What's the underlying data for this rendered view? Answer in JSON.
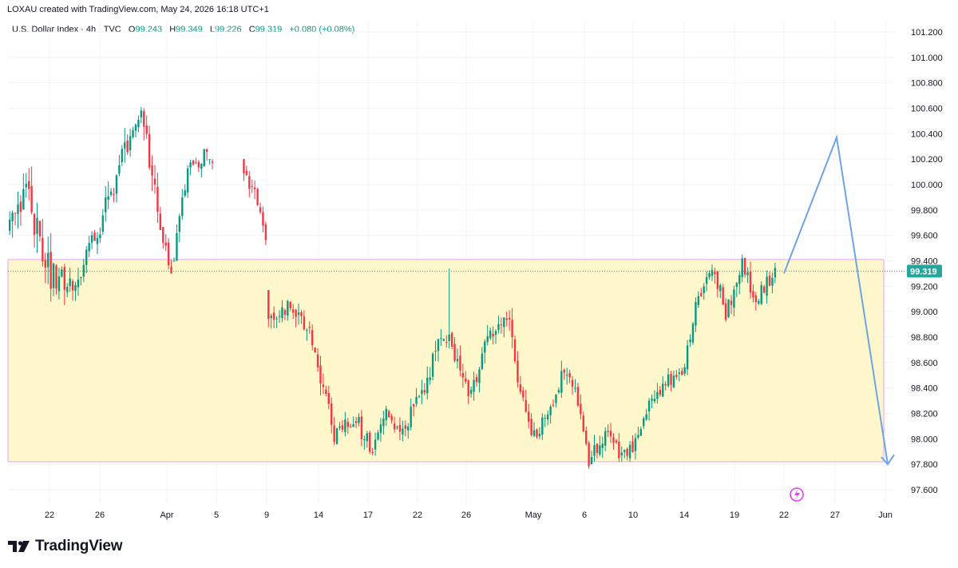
{
  "header": {
    "credit": "LOXAU created with TradingView.com, May 24, 2026 16:18 UTC+1",
    "symbol": "U.S. Dollar Index · 4h · TVC",
    "open_label": "O",
    "open": "99.243",
    "high_label": "H",
    "high": "99.349",
    "low_label": "L",
    "low": "99.226",
    "close_label": "C",
    "close": "99.319",
    "change": "+0.080 (+0.08%)"
  },
  "brand": {
    "text": "TradingView",
    "logo": "tradingview-logo-icon"
  },
  "colors": {
    "up": "#089981",
    "down": "#f23645",
    "zone_fill": "#fff7cc",
    "zone_border": "#e1a6e8",
    "projection": "#6fa3e6",
    "price_line": "#26a69a",
    "grid": "#f0f3fa"
  },
  "chart_data": {
    "type": "candlestick",
    "title": "U.S. Dollar Index · 4h · TVC",
    "ylim": [
      97.5,
      101.3
    ],
    "y_ticks": [
      97.6,
      97.8,
      98.0,
      98.2,
      98.4,
      98.6,
      98.8,
      99.0,
      99.2,
      99.4,
      99.6,
      99.8,
      100.0,
      100.2,
      100.4,
      100.6,
      100.8,
      101.0,
      101.2
    ],
    "y_tick_labels": [
      "97.600",
      "97.800",
      "98.000",
      "98.200",
      "98.400",
      "98.600",
      "98.800",
      "99.000",
      "99.200",
      "99.400",
      "99.600",
      "99.800",
      "100.000",
      "100.200",
      "100.400",
      "100.600",
      "100.800",
      "101.000",
      "101.200"
    ],
    "x_ticks": [
      "22",
      "26",
      "Apr",
      "5",
      "9",
      "14",
      "17",
      "22",
      "26",
      "May",
      "6",
      "10",
      "14",
      "19",
      "22",
      "27",
      "Jun"
    ],
    "last_price": 99.319,
    "last_price_label": "99.319",
    "zone": {
      "low": 97.82,
      "high": 99.41
    },
    "projection": [
      99.3,
      100.37,
      97.8
    ],
    "segments": [
      {
        "from": 99.6,
        "to": 99.95,
        "n": 7,
        "s": 1,
        "amp": 0.22,
        "lo": 98.95,
        "hi": 100.3
      },
      {
        "from": 99.95,
        "to": 99.3,
        "n": 9,
        "s": 2,
        "amp": 0.26,
        "lo": 98.95,
        "hi": 100.3
      },
      {
        "from": 99.3,
        "to": 99.25,
        "n": 10,
        "s": 3,
        "amp": 0.22,
        "lo": 98.9,
        "hi": 99.7
      },
      {
        "from": 99.25,
        "to": 99.75,
        "n": 9,
        "s": 4,
        "amp": 0.18,
        "lo": 99.05,
        "hi": 99.9
      },
      {
        "from": 99.75,
        "to": 100.25,
        "n": 8,
        "s": 5,
        "amp": 0.2,
        "lo": 99.6,
        "hi": 100.45
      },
      {
        "from": 100.25,
        "to": 100.55,
        "n": 6,
        "s": 6,
        "amp": 0.1,
        "lo": 100.1,
        "hi": 100.65
      },
      {
        "from": 100.55,
        "to": 99.8,
        "n": 6,
        "s": 7,
        "amp": 0.2,
        "lo": 99.6,
        "hi": 100.6
      },
      {
        "from": 99.8,
        "to": 99.3,
        "n": 5,
        "s": 8,
        "amp": 0.14,
        "lo": 99.3,
        "hi": 99.95
      },
      {
        "from": 99.3,
        "to": 100.1,
        "n": 6,
        "s": 9,
        "amp": 0.14,
        "lo": 99.4,
        "hi": 100.3
      },
      {
        "from": 100.1,
        "to": 100.25,
        "n": 7,
        "s": 10,
        "amp": 0.14,
        "lo": 99.85,
        "hi": 100.28
      },
      {
        "from": 100.25,
        "to": 99.95,
        "n": 7,
        "s": 11,
        "amp": 0.14,
        "lo": 99.75,
        "hi": 100.2
      },
      {
        "from": 99.95,
        "to": 99.55,
        "n": 4,
        "s": 12,
        "amp": 0.1,
        "lo": 99.5,
        "hi": 100.0
      },
      {
        "from": 98.95,
        "to": 99.05,
        "n": 8,
        "s": 13,
        "amp": 0.14,
        "lo": 98.55,
        "hi": 99.17
      },
      {
        "from": 99.05,
        "to": 98.85,
        "n": 8,
        "s": 14,
        "amp": 0.14,
        "lo": 98.6,
        "hi": 99.1
      },
      {
        "from": 98.85,
        "to": 98.05,
        "n": 9,
        "s": 15,
        "amp": 0.16,
        "lo": 97.95,
        "hi": 98.9
      },
      {
        "from": 98.05,
        "to": 98.15,
        "n": 8,
        "s": 16,
        "amp": 0.12,
        "lo": 97.9,
        "hi": 98.3
      },
      {
        "from": 98.15,
        "to": 97.9,
        "n": 6,
        "s": 17,
        "amp": 0.14,
        "lo": 97.82,
        "hi": 98.28
      },
      {
        "from": 97.9,
        "to": 98.2,
        "n": 5,
        "s": 18,
        "amp": 0.12,
        "lo": 97.82,
        "hi": 98.28
      },
      {
        "from": 98.2,
        "to": 98.05,
        "n": 6,
        "s": 19,
        "amp": 0.12,
        "lo": 97.98,
        "hi": 98.4
      },
      {
        "from": 98.05,
        "to": 98.4,
        "n": 7,
        "s": 20,
        "amp": 0.14,
        "lo": 98.0,
        "hi": 98.6
      },
      {
        "from": 98.4,
        "to": 98.85,
        "n": 9,
        "s": 21,
        "amp": 0.18,
        "lo": 98.25,
        "hi": 98.95
      },
      {
        "from": 98.85,
        "to": 98.75,
        "n": 2,
        "s": 22,
        "amp": 0.1,
        "lo": 98.5,
        "hi": 99.34
      },
      {
        "from": 98.75,
        "to": 98.35,
        "n": 6,
        "s": 23,
        "amp": 0.14,
        "lo": 98.2,
        "hi": 98.8
      },
      {
        "from": 98.35,
        "to": 98.8,
        "n": 8,
        "s": 24,
        "amp": 0.16,
        "lo": 98.3,
        "hi": 98.95
      },
      {
        "from": 98.8,
        "to": 99.0,
        "n": 6,
        "s": 25,
        "amp": 0.14,
        "lo": 98.7,
        "hi": 99.1
      },
      {
        "from": 99.0,
        "to": 98.45,
        "n": 4,
        "s": 26,
        "amp": 0.16,
        "lo": 98.3,
        "hi": 99.05
      },
      {
        "from": 98.45,
        "to": 98.0,
        "n": 6,
        "s": 27,
        "amp": 0.14,
        "lo": 97.92,
        "hi": 98.5
      },
      {
        "from": 98.0,
        "to": 98.2,
        "n": 5,
        "s": 28,
        "amp": 0.12,
        "lo": 97.9,
        "hi": 98.3
      },
      {
        "from": 98.2,
        "to": 98.55,
        "n": 6,
        "s": 29,
        "amp": 0.14,
        "lo": 98.1,
        "hi": 98.62
      },
      {
        "from": 98.55,
        "to": 98.3,
        "n": 5,
        "s": 30,
        "amp": 0.14,
        "lo": 98.25,
        "hi": 98.6
      },
      {
        "from": 98.3,
        "to": 97.85,
        "n": 4,
        "s": 31,
        "amp": 0.14,
        "lo": 97.65,
        "hi": 98.35
      },
      {
        "from": 97.85,
        "to": 98.05,
        "n": 6,
        "s": 32,
        "amp": 0.14,
        "lo": 97.8,
        "hi": 98.15
      },
      {
        "from": 98.05,
        "to": 97.9,
        "n": 5,
        "s": 33,
        "amp": 0.12,
        "lo": 97.82,
        "hi": 98.28
      },
      {
        "from": 97.9,
        "to": 97.95,
        "n": 6,
        "s": 34,
        "amp": 0.12,
        "lo": 97.82,
        "hi": 98.1
      },
      {
        "from": 97.95,
        "to": 98.25,
        "n": 5,
        "s": 35,
        "amp": 0.12,
        "lo": 97.9,
        "hi": 98.35
      },
      {
        "from": 98.25,
        "to": 98.45,
        "n": 6,
        "s": 36,
        "amp": 0.12,
        "lo": 98.15,
        "hi": 98.55
      },
      {
        "from": 98.45,
        "to": 98.5,
        "n": 6,
        "s": 37,
        "amp": 0.1,
        "lo": 98.35,
        "hi": 98.62
      },
      {
        "from": 98.5,
        "to": 99.05,
        "n": 5,
        "s": 38,
        "amp": 0.1,
        "lo": 98.45,
        "hi": 99.15
      },
      {
        "from": 99.05,
        "to": 99.35,
        "n": 6,
        "s": 39,
        "amp": 0.12,
        "lo": 98.95,
        "hi": 99.42
      },
      {
        "from": 99.35,
        "to": 99.0,
        "n": 5,
        "s": 40,
        "amp": 0.14,
        "lo": 98.92,
        "hi": 99.4
      },
      {
        "from": 99.0,
        "to": 99.35,
        "n": 6,
        "s": 41,
        "amp": 0.14,
        "lo": 98.95,
        "hi": 99.45
      },
      {
        "from": 99.35,
        "to": 99.1,
        "n": 5,
        "s": 42,
        "amp": 0.14,
        "lo": 98.97,
        "hi": 99.45
      },
      {
        "from": 99.1,
        "to": 99.319,
        "n": 7,
        "s": 43,
        "amp": 0.12,
        "lo": 99.05,
        "hi": 99.5
      }
    ]
  }
}
